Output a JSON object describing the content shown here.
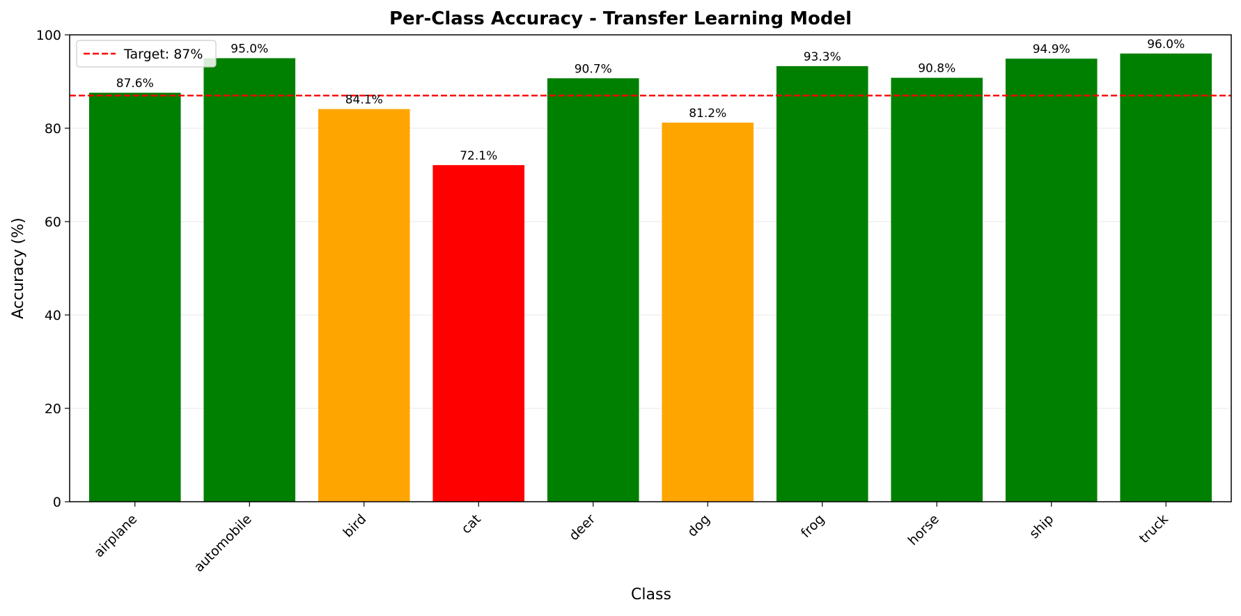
{
  "chart_data": {
    "type": "bar",
    "title": "Per-Class Accuracy - Transfer Learning Model",
    "xlabel": "Class",
    "ylabel": "Accuracy (%)",
    "ylim": [
      0,
      100
    ],
    "yticks": [
      0,
      20,
      40,
      60,
      80,
      100
    ],
    "grid": "horizontal",
    "legend_position": "top-left",
    "categories": [
      "airplane",
      "automobile",
      "bird",
      "cat",
      "deer",
      "dog",
      "frog",
      "horse",
      "ship",
      "truck"
    ],
    "values": [
      87.6,
      95.0,
      84.1,
      72.1,
      90.7,
      81.2,
      93.3,
      90.8,
      94.9,
      96.0
    ],
    "value_labels": [
      "87.6%",
      "95.0%",
      "84.1%",
      "72.1%",
      "90.7%",
      "81.2%",
      "93.3%",
      "90.8%",
      "94.9%",
      "96.0%"
    ],
    "bar_colors": [
      "#008000",
      "#008000",
      "#FFA500",
      "#FF0000",
      "#008000",
      "#FFA500",
      "#008000",
      "#008000",
      "#008000",
      "#008000"
    ],
    "target_line": {
      "value": 87,
      "label": "Target: 87%",
      "color": "#FF0000",
      "style": "dashed"
    }
  }
}
